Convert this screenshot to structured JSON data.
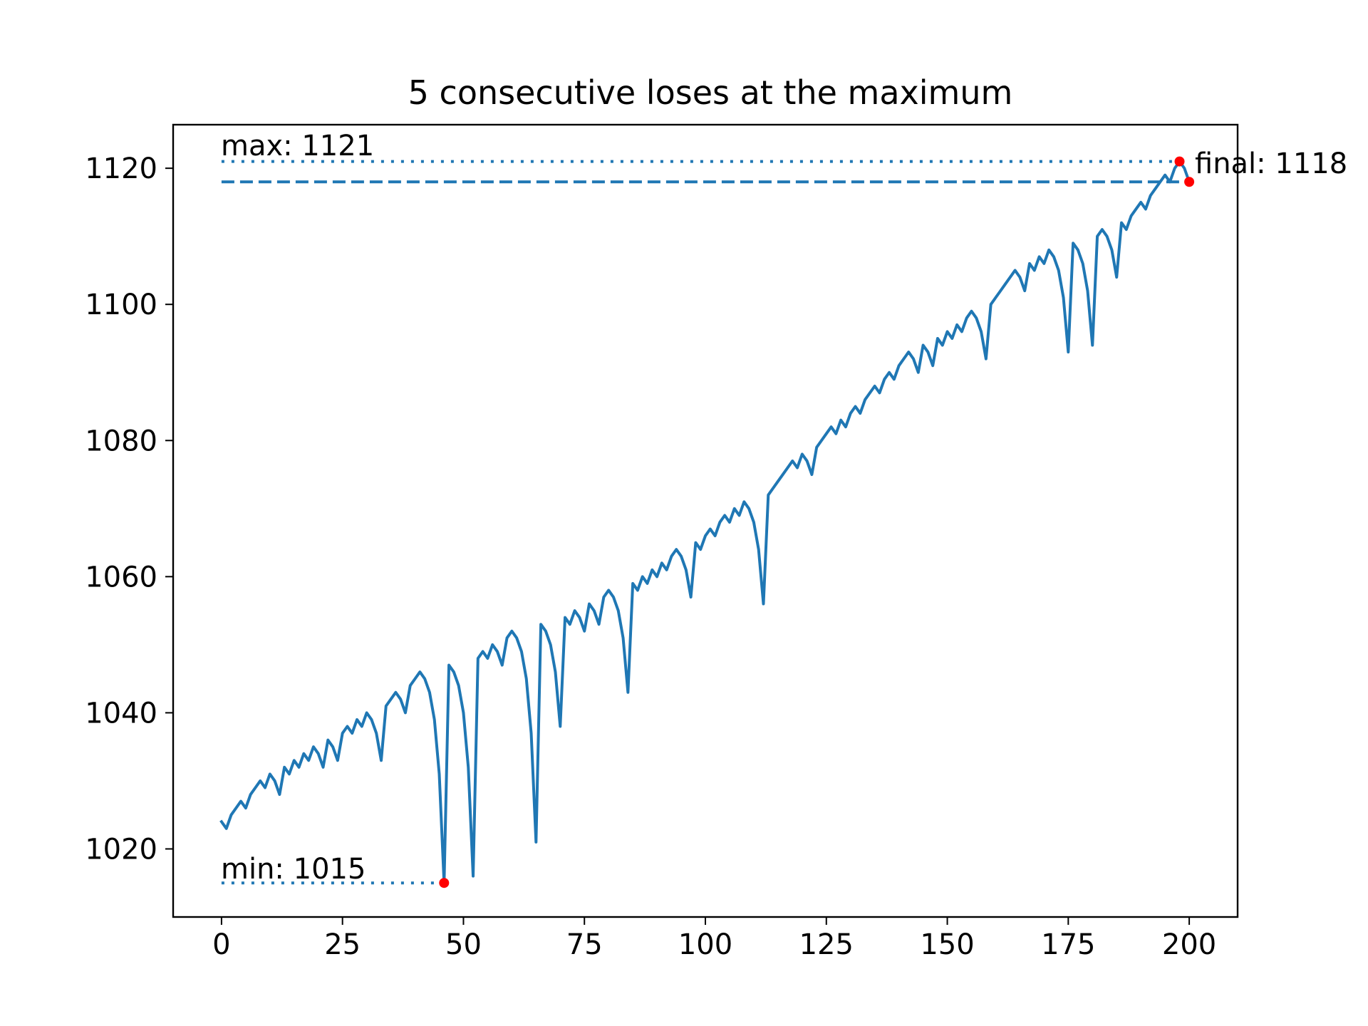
{
  "chart_data": {
    "type": "line",
    "title": "5 consecutive loses at the maximum",
    "xlabel": "",
    "ylabel": "",
    "xlim": [
      -10,
      210
    ],
    "ylim": [
      1010,
      1126.4
    ],
    "xticks": [
      0,
      25,
      50,
      75,
      100,
      125,
      150,
      175,
      200
    ],
    "yticks": [
      1020,
      1040,
      1060,
      1080,
      1100,
      1120
    ],
    "grid": false,
    "legend": "none",
    "colors": {
      "line": "#1f77b4",
      "markers": "#ff0000",
      "axes": "#000000"
    },
    "series": [
      {
        "x": [
          0,
          1,
          2,
          3,
          4,
          5,
          6,
          7,
          8,
          9,
          10,
          11,
          12,
          13,
          14,
          15,
          16,
          17,
          18,
          19,
          20,
          21,
          22,
          23,
          24,
          25,
          26,
          27,
          28,
          29,
          30,
          31,
          32,
          33,
          34,
          35,
          36,
          37,
          38,
          39,
          40,
          41,
          42,
          43,
          44,
          45,
          46,
          47,
          48,
          49,
          50,
          51,
          52,
          53,
          54,
          55,
          56,
          57,
          58,
          59,
          60,
          61,
          62,
          63,
          64,
          65,
          66,
          67,
          68,
          69,
          70,
          71,
          72,
          73,
          74,
          75,
          76,
          77,
          78,
          79,
          80,
          81,
          82,
          83,
          84,
          85,
          86,
          87,
          88,
          89,
          90,
          91,
          92,
          93,
          94,
          95,
          96,
          97,
          98,
          99,
          100,
          101,
          102,
          103,
          104,
          105,
          106,
          107,
          108,
          109,
          110,
          111,
          112,
          113,
          114,
          115,
          116,
          117,
          118,
          119,
          120,
          121,
          122,
          123,
          124,
          125,
          126,
          127,
          128,
          129,
          130,
          131,
          132,
          133,
          134,
          135,
          136,
          137,
          138,
          139,
          140,
          141,
          142,
          143,
          144,
          145,
          146,
          147,
          148,
          149,
          150,
          151,
          152,
          153,
          154,
          155,
          156,
          157,
          158,
          159,
          160,
          161,
          162,
          163,
          164,
          165,
          166,
          167,
          168,
          169,
          170,
          171,
          172,
          173,
          174,
          175,
          176,
          177,
          178,
          179,
          180,
          181,
          182,
          183,
          184,
          185,
          186,
          187,
          188,
          189,
          190,
          191,
          192,
          193,
          194,
          195,
          196,
          197,
          198,
          199,
          200
        ],
        "y": [
          1024,
          1023,
          1025,
          1026,
          1027,
          1026,
          1028,
          1029,
          1030,
          1029,
          1031,
          1030,
          1028,
          1032,
          1031,
          1033,
          1032,
          1034,
          1033,
          1035,
          1034,
          1032,
          1036,
          1035,
          1033,
          1037,
          1038,
          1037,
          1039,
          1038,
          1040,
          1039,
          1037,
          1033,
          1041,
          1042,
          1043,
          1042,
          1040,
          1044,
          1045,
          1046,
          1045,
          1043,
          1039,
          1031,
          1015,
          1047,
          1046,
          1044,
          1040,
          1032,
          1016,
          1048,
          1049,
          1048,
          1050,
          1049,
          1047,
          1051,
          1052,
          1051,
          1049,
          1045,
          1037,
          1021,
          1053,
          1052,
          1050,
          1046,
          1038,
          1054,
          1053,
          1055,
          1054,
          1052,
          1056,
          1055,
          1053,
          1057,
          1058,
          1057,
          1055,
          1051,
          1043,
          1059,
          1058,
          1060,
          1059,
          1061,
          1060,
          1062,
          1061,
          1063,
          1064,
          1063,
          1061,
          1057,
          1065,
          1064,
          1066,
          1067,
          1066,
          1068,
          1069,
          1068,
          1070,
          1069,
          1071,
          1070,
          1068,
          1064,
          1056,
          1072,
          1073,
          1074,
          1075,
          1076,
          1077,
          1076,
          1078,
          1077,
          1075,
          1079,
          1080,
          1081,
          1082,
          1081,
          1083,
          1082,
          1084,
          1085,
          1084,
          1086,
          1087,
          1088,
          1087,
          1089,
          1090,
          1089,
          1091,
          1092,
          1093,
          1092,
          1090,
          1094,
          1093,
          1091,
          1095,
          1094,
          1096,
          1095,
          1097,
          1096,
          1098,
          1099,
          1098,
          1096,
          1092,
          1100,
          1101,
          1102,
          1103,
          1104,
          1105,
          1104,
          1102,
          1106,
          1105,
          1107,
          1106,
          1108,
          1107,
          1105,
          1101,
          1093,
          1109,
          1108,
          1106,
          1102,
          1094,
          1110,
          1111,
          1110,
          1108,
          1104,
          1112,
          1111,
          1113,
          1114,
          1115,
          1114,
          1116,
          1117,
          1118,
          1119,
          1118,
          1120,
          1121,
          1120,
          1118
        ]
      }
    ],
    "reference_lines": {
      "max": {
        "value": 1121,
        "x_end": 198,
        "style": "dotted",
        "label": "max: 1121"
      },
      "min": {
        "value": 1015,
        "x_end": 46,
        "style": "dotted",
        "label": "min: 1015"
      },
      "final": {
        "value": 1118,
        "x_end": 200,
        "style": "dashed",
        "label": "final: 1118"
      }
    },
    "markers": [
      {
        "x": 198,
        "y": 1121
      },
      {
        "x": 46,
        "y": 1015
      },
      {
        "x": 200,
        "y": 1118
      }
    ]
  }
}
